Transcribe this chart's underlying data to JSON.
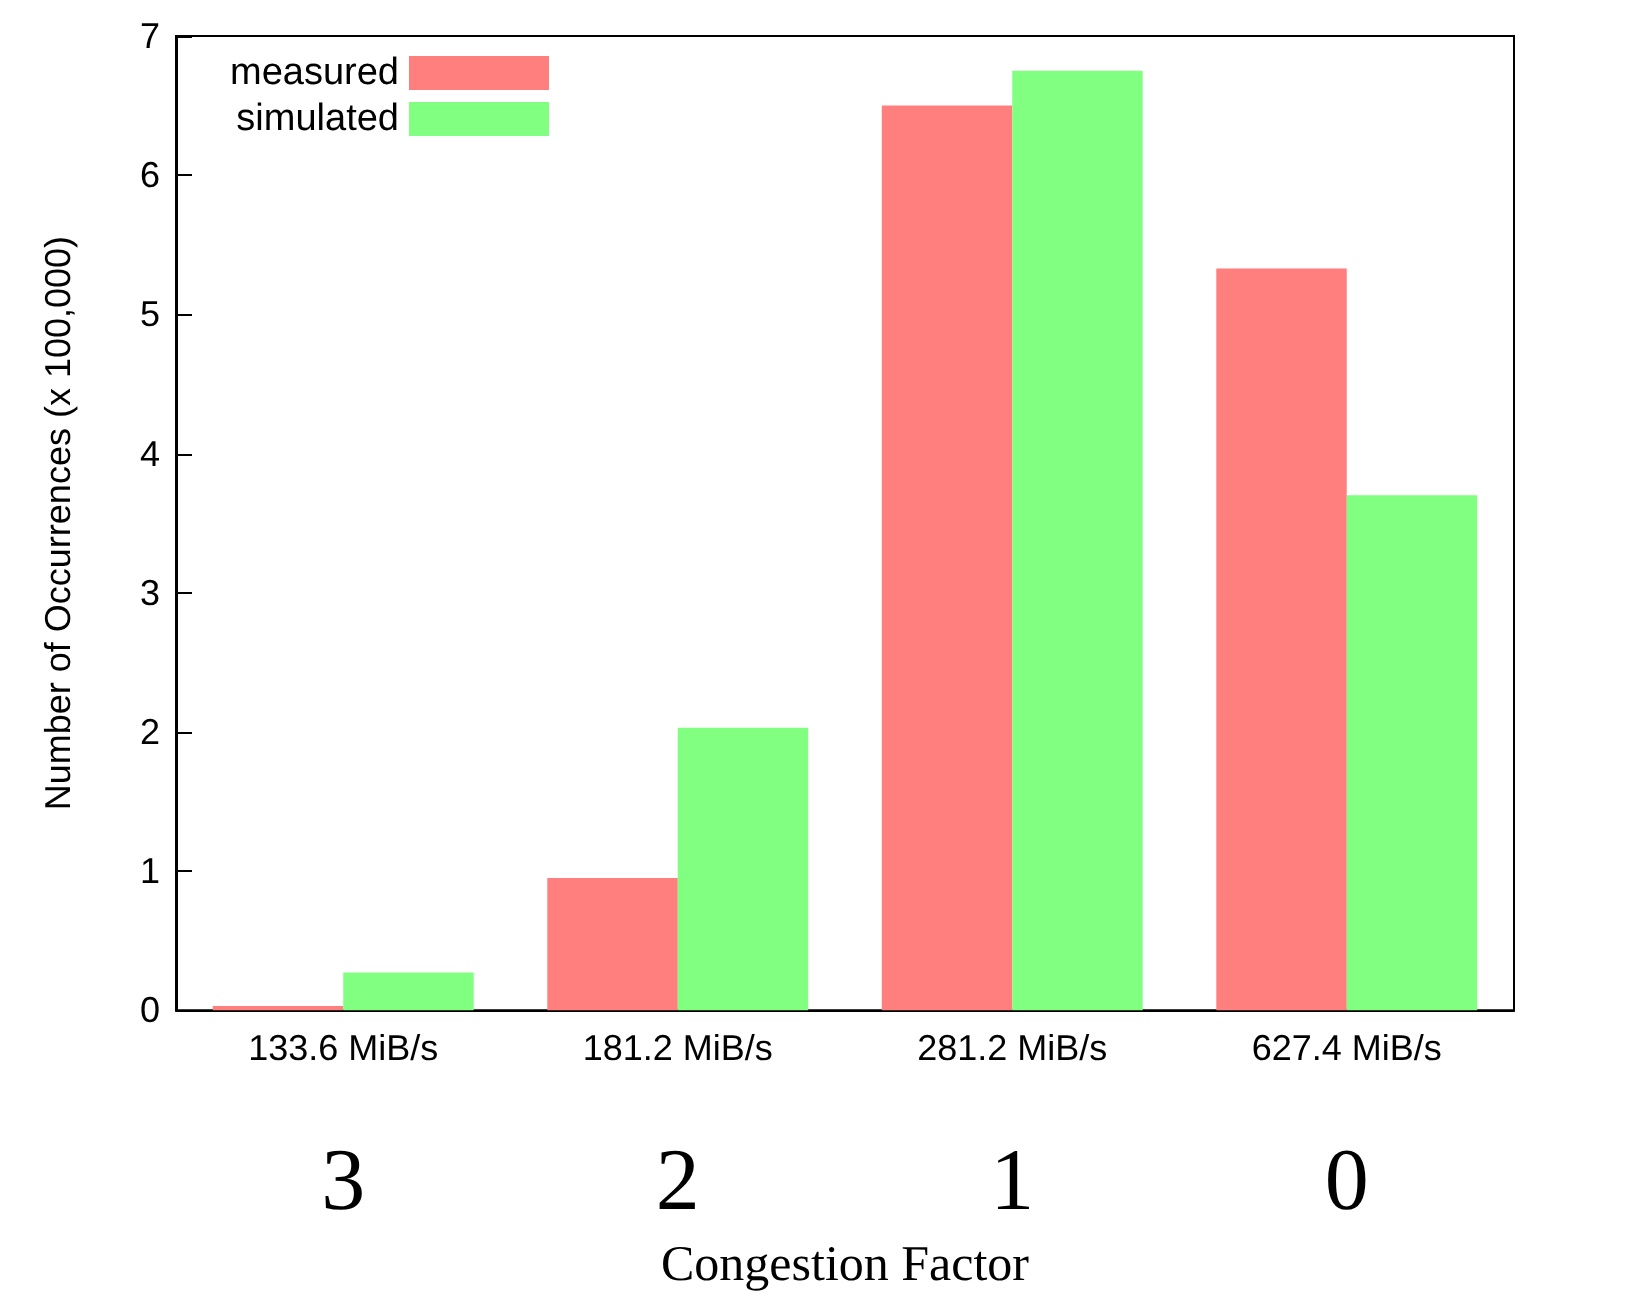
{
  "chart_data": {
    "type": "bar",
    "xlabel": "Congestion Factor",
    "ylabel": "Number of Occurrences (x 100,000)",
    "categories": [
      "133.6 MiB/s\n3",
      "181.2 MiB/s\n2",
      "281.2 MiB/s\n1",
      "627.4 MiB/s\n0"
    ],
    "series": [
      {
        "name": "measured",
        "color": "#ff7f7f",
        "values": [
          0.03,
          0.95,
          6.5,
          5.33
        ]
      },
      {
        "name": "simulated",
        "color": "#80ff80",
        "values": [
          0.27,
          2.03,
          6.75,
          3.7
        ]
      }
    ],
    "ylim": [
      0,
      7
    ],
    "yticks": [
      0,
      1,
      2,
      3,
      4,
      5,
      6,
      7
    ],
    "grid": false,
    "legend": "top left"
  }
}
